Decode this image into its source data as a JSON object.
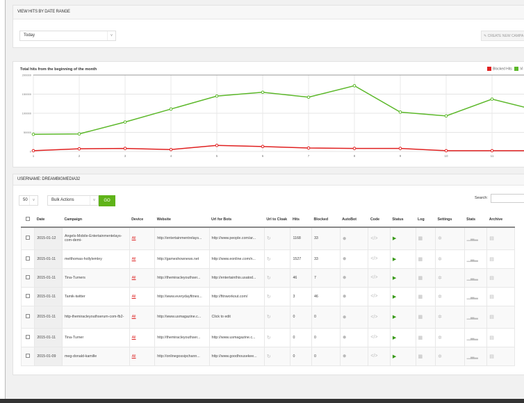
{
  "date_panel": {
    "title": "VIEW HITS BY DATE RANGE",
    "range_select": "Today",
    "create_button": "CREATE NEW CAMPA"
  },
  "chart_data": {
    "type": "line",
    "title": "Total hits from the beginning of the month",
    "x": [
      1,
      2,
      3,
      4,
      5,
      6,
      7,
      8,
      9,
      10,
      11,
      12
    ],
    "x_tick_labels": [
      "1",
      "2",
      "3",
      "4",
      "5",
      "6",
      "7",
      "8",
      "9",
      "10",
      "11"
    ],
    "ylim": [
      0,
      200000
    ],
    "y_tick_labels": [
      "200000",
      "150000",
      "100000",
      "50000",
      "0"
    ],
    "grid": true,
    "legend_placement": "top-right",
    "series": [
      {
        "name": "Blocked Hits",
        "color": "#e02020",
        "values": [
          2000,
          7000,
          8000,
          5000,
          16000,
          13000,
          9000,
          8000,
          8000,
          2000,
          2000,
          2000
        ]
      },
      {
        "name": "Vi",
        "color": "#5cb82a",
        "values": [
          45000,
          46000,
          77000,
          111000,
          145000,
          155000,
          142000,
          172000,
          103000,
          93000,
          137000,
          107000
        ]
      }
    ]
  },
  "table_panel": {
    "title": "USERNAME: DREAMBIGMEDIA32",
    "page_size": "50",
    "bulk_actions": "Bulk Actions",
    "go": "GO",
    "search_label": "Search:",
    "columns": [
      "Date",
      "Campaign",
      "Device",
      "Website",
      "Url for Bots",
      "Url to Cloak",
      "Hits",
      "Blocked",
      "AutoBot",
      "Code",
      "Status",
      "Log",
      "Settings",
      "Stats",
      "Archive"
    ],
    "rows": [
      {
        "date": "2015-01-12",
        "campaign": "Angels-Mobile-Entertainmentelays-com-demi-",
        "device": "All",
        "website": "http://entertainmentrelays...",
        "bots": "http://www.people.com/ar...",
        "hits": "1168",
        "blocked": "33"
      },
      {
        "date": "2015-01-11",
        "campaign": "melthomas-hollylemley",
        "device": "All",
        "website": "http://gameshownews.net",
        "bots": "http://www.eonline.com/n...",
        "hits": "1527",
        "blocked": "33"
      },
      {
        "date": "2015-01-11",
        "campaign": "Tina-Turners",
        "device": "All",
        "website": "http://themiracleyouthser...",
        "bots": "http://entertainthis.usatod...",
        "hits": "46",
        "blocked": "7"
      },
      {
        "date": "2015-01-11",
        "campaign": "Tamik-twitter",
        "device": "All",
        "website": "http://www.everydayfitnes...",
        "bots": "http://fitnworkout.com/",
        "hits": "3",
        "blocked": "46"
      },
      {
        "date": "2015-01-11",
        "campaign": "http-themiracleyouthserum-com-fb2-",
        "device": "All",
        "website": "http://www.usmagazine.c...",
        "bots": "Click to edit",
        "hits": "0",
        "blocked": "0"
      },
      {
        "date": "2015-01-11",
        "campaign": "Tina-Turner",
        "device": "All",
        "website": "http://themiracleyouthser...",
        "bots": "http://www.usmagazine.c...",
        "hits": "0",
        "blocked": "0"
      },
      {
        "date": "2015-01-09",
        "campaign": "meg-donald-kamille",
        "device": "All",
        "website": "http://onlinegossipchann...",
        "bots": "http://www.goodhousekee...",
        "hits": "0",
        "blocked": "0"
      }
    ]
  }
}
